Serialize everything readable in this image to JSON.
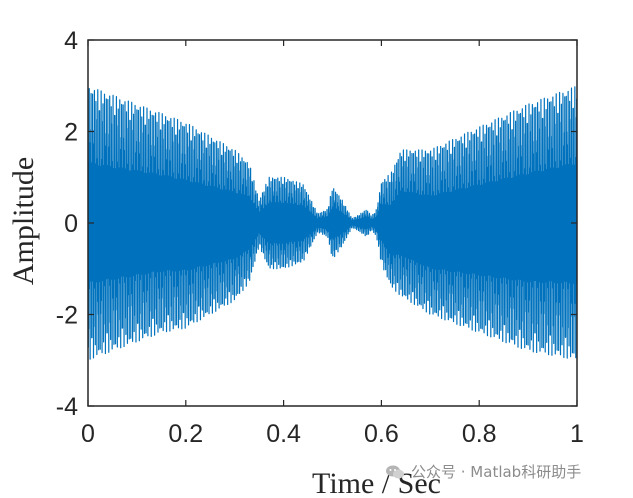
{
  "chart_data": {
    "type": "line",
    "title": "",
    "xlabel": "Time / Sec",
    "ylabel": "Amplitude",
    "xlim": [
      0,
      1
    ],
    "ylim": [
      -4,
      4
    ],
    "xticks": [
      0,
      0.2,
      0.4,
      0.6,
      0.8,
      1
    ],
    "xtick_labels": [
      "0",
      "0.2",
      "0.4",
      "0.6",
      "0.8",
      "1"
    ],
    "yticks": [
      -4,
      -2,
      0,
      2,
      4
    ],
    "ytick_labels": [
      "-4",
      "-2",
      "0",
      "2",
      "4"
    ],
    "grid": false,
    "series": [
      {
        "color": "#0072BD",
        "envelope": {
          "t": [
            0,
            0.05,
            0.1,
            0.15,
            0.2,
            0.25,
            0.3,
            0.33,
            0.35,
            0.37,
            0.4,
            0.44,
            0.47,
            0.49,
            0.5,
            0.52,
            0.54,
            0.55,
            0.57,
            0.58,
            0.59,
            0.6,
            0.62,
            0.64,
            0.7,
            0.8,
            0.9,
            1.0
          ],
          "upper": [
            3.0,
            2.8,
            2.6,
            2.4,
            2.2,
            1.9,
            1.6,
            1.3,
            0.5,
            1.0,
            1.0,
            0.85,
            0.2,
            0.3,
            0.8,
            0.5,
            0.1,
            0.15,
            0.3,
            0.15,
            0.3,
            0.9,
            1.1,
            1.6,
            1.6,
            2.1,
            2.6,
            3.0
          ],
          "lower": [
            -3.0,
            -2.8,
            -2.6,
            -2.4,
            -2.3,
            -2.0,
            -1.7,
            -1.3,
            -0.5,
            -1.0,
            -1.0,
            -0.85,
            -0.2,
            -0.3,
            -0.8,
            -0.5,
            -0.1,
            -0.15,
            -0.3,
            -0.15,
            -0.3,
            -0.9,
            -1.4,
            -1.6,
            -2.0,
            -2.4,
            -2.8,
            -3.0
          ]
        }
      }
    ]
  },
  "watermark": {
    "text": "公众号 · Matlab科研助手",
    "logo_icon": "wechat-icon"
  }
}
